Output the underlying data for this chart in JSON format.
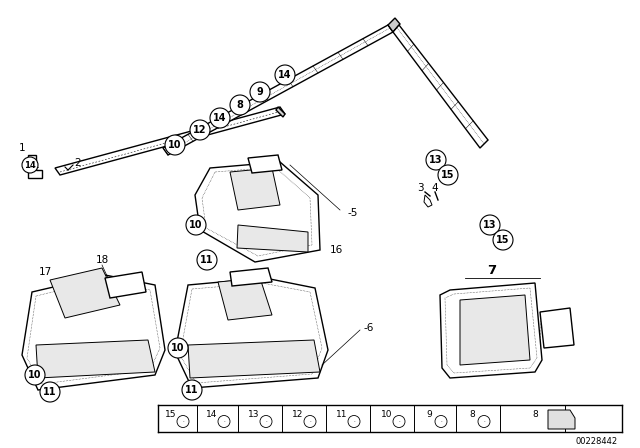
{
  "bg_color": "#ffffff",
  "fig_width": 6.4,
  "fig_height": 4.48,
  "dpi": 100,
  "part_number": "00228442",
  "label_fontsize": 7.5,
  "bubble_fontsize": 7.0,
  "bubble_r": 9,
  "line_color": "#000000",
  "lw_part": 1.0,
  "lw_thin": 0.5,
  "lw_dot": 0.4
}
